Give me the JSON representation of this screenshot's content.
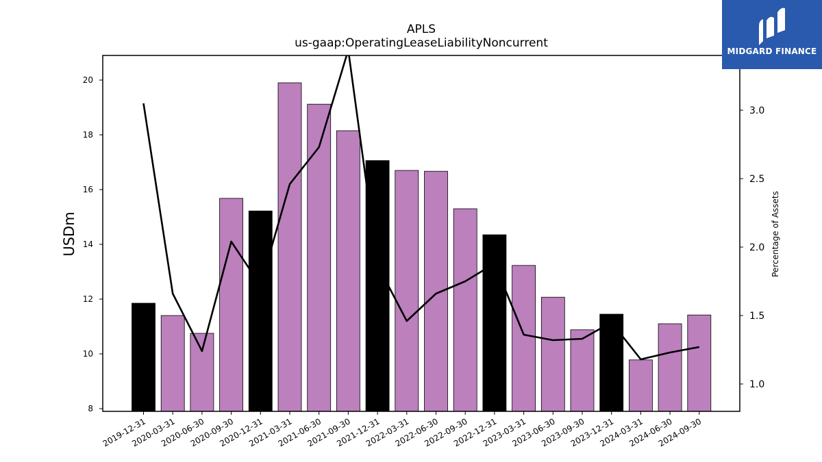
{
  "logo": {
    "text": "MIDGARD FINANCE",
    "background": "#2a5aad"
  },
  "chart_data": {
    "type": "bar",
    "title": "APLS",
    "subtitle": "us-gaap:OperatingLeaseLiabilityNoncurrent",
    "ylabel": "USDm",
    "ylabel_right": "Percentage of Assets",
    "ylim": [
      7.9,
      20.9
    ],
    "ylim_right": [
      0.8,
      3.4
    ],
    "yticks": [
      8,
      10,
      12,
      14,
      16,
      18,
      20
    ],
    "yticks_right": [
      "1.0",
      "1.5",
      "2.0",
      "2.5",
      "3.0"
    ],
    "categories": [
      "2019-12-31",
      "2020-03-31",
      "2020-06-30",
      "2020-09-30",
      "2020-12-31",
      "2021-03-31",
      "2021-06-30",
      "2021-09-30",
      "2021-12-31",
      "2022-03-31",
      "2022-06-30",
      "2022-09-30",
      "2022-12-31",
      "2023-03-31",
      "2023-06-30",
      "2023-09-30",
      "2023-12-31",
      "2024-03-31",
      "2024-06-30",
      "2024-09-30"
    ],
    "series": [
      {
        "axis": "left",
        "kind": "bar",
        "values": [
          11.85,
          11.4,
          10.75,
          15.68,
          15.22,
          19.9,
          19.12,
          18.15,
          17.06,
          16.7,
          16.67,
          15.3,
          14.35,
          13.23,
          12.07,
          10.88,
          11.45,
          9.78,
          11.1,
          11.42
        ],
        "colors": [
          "#000000",
          "#bc80bd",
          "#bc80bd",
          "#bc80bd",
          "#000000",
          "#bc80bd",
          "#bc80bd",
          "#bc80bd",
          "#000000",
          "#bc80bd",
          "#bc80bd",
          "#bc80bd",
          "#000000",
          "#bc80bd",
          "#bc80bd",
          "#bc80bd",
          "#000000",
          "#bc80bd",
          "#bc80bd",
          "#bc80bd"
        ]
      },
      {
        "axis": "right",
        "kind": "line",
        "color": "#000000",
        "values": [
          3.05,
          1.66,
          1.24,
          2.04,
          1.72,
          2.46,
          2.73,
          3.44,
          1.87,
          1.46,
          1.66,
          1.75,
          1.88,
          1.36,
          1.32,
          1.33,
          1.45,
          1.18,
          1.23,
          1.27
        ]
      }
    ]
  }
}
